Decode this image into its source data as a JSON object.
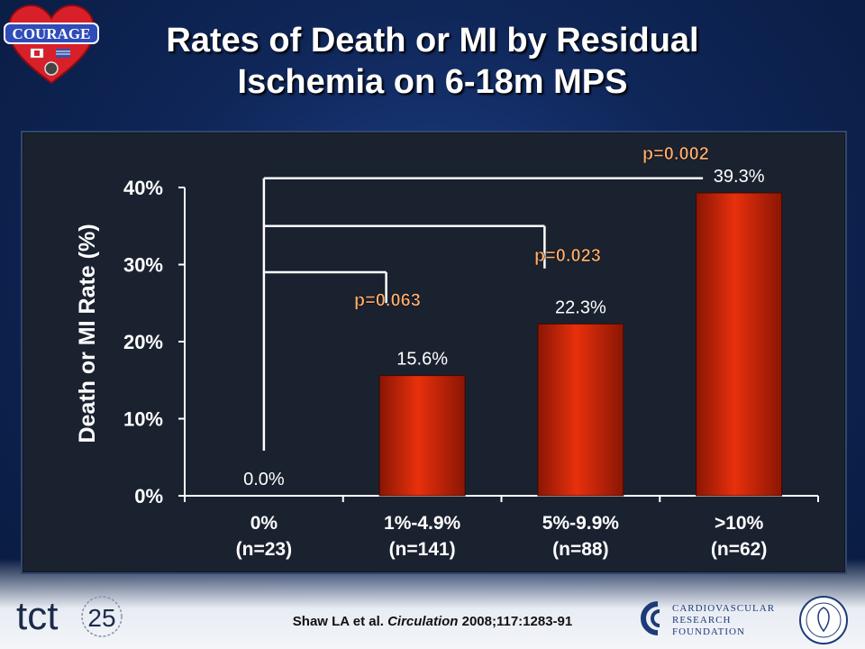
{
  "slide": {
    "title": "Rates of Death or MI by Residual Ischemia on 6-18m MPS",
    "title_line1": "Rates of Death or MI by Residual",
    "title_line2": "Ischemia on 6-18m MPS",
    "logo_text": "COURAGE",
    "reference_author": "Shaw LA et al.",
    "reference_journal": "Circulation",
    "reference_rest": "2008;117:1283-91",
    "tct_text": "tct",
    "tct_number": "25",
    "crf_line1": "CARDIOVASCULAR",
    "crf_line2": "RESEARCH",
    "crf_line3": "FOUNDATION"
  },
  "colors": {
    "bar": "#e8300c",
    "bar_dark": "#8a1604",
    "pvalue": "#ffb074",
    "bracket": "#ffffff",
    "panel": "#1a2230"
  },
  "chart_data": {
    "type": "bar",
    "categories": [
      "0%",
      "1%-4.9%",
      "5%-9.9%",
      ">10%"
    ],
    "category_sublabels": [
      "(n=23)",
      "(n=141)",
      "(n=88)",
      "(n=62)"
    ],
    "values": [
      0.0,
      15.6,
      22.3,
      39.3
    ],
    "value_labels": [
      "0.0%",
      "15.6%",
      "22.3%",
      "39.3%"
    ],
    "ylabel": "Death or MI Rate (%)",
    "ylim": [
      0,
      40
    ],
    "yticks": [
      "0%",
      "10%",
      "20%",
      "30%",
      "40%"
    ],
    "grid": false,
    "comparisons": [
      {
        "from": "0%",
        "to": "1%-4.9%",
        "label": "p=0.063"
      },
      {
        "from": "0%",
        "to": "5%-9.9%",
        "label": "p=0.023"
      },
      {
        "from": "0%",
        "to": ">10%",
        "label": "p=0.002"
      }
    ]
  }
}
